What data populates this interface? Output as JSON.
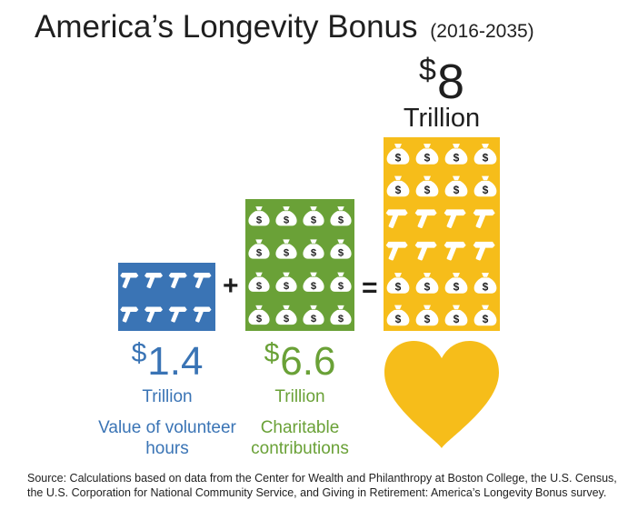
{
  "title": "America’s Longevity Bonus",
  "subtitle": "(2016-2035)",
  "colors": {
    "volunteer": "#3a74b5",
    "charitable": "#6aa137",
    "total": "#f6bd1a",
    "icon": "#ffffff",
    "text": "#1f1f1f"
  },
  "icons": {
    "hammer": "hammer-icon",
    "money_bag": "money-bag-icon",
    "heart": "heart-icon"
  },
  "operators": {
    "plus": "+",
    "equals": "="
  },
  "chart_data": {
    "type": "bar",
    "title": "America’s Longevity Bonus",
    "subtitle": "(2016-2035)",
    "unit": "Trillion",
    "series": [
      {
        "name": "Value of volunteer hours",
        "currency": "$",
        "amount": "1.4",
        "value": 1.4,
        "unit": "Trillion",
        "label": "Value of volunteer hours",
        "icon_grid": [
          "hammer",
          "hammer",
          "hammer",
          "hammer",
          "hammer",
          "hammer",
          "hammer",
          "hammer"
        ],
        "rows": 2,
        "cols": 4
      },
      {
        "name": "Charitable contributions",
        "currency": "$",
        "amount": "6.6",
        "value": 6.6,
        "unit": "Trillion",
        "label": "Charitable contributions",
        "icon_grid": [
          "money_bag",
          "money_bag",
          "money_bag",
          "money_bag",
          "money_bag",
          "money_bag",
          "money_bag",
          "money_bag",
          "money_bag",
          "money_bag",
          "money_bag",
          "money_bag",
          "money_bag",
          "money_bag",
          "money_bag",
          "money_bag"
        ],
        "rows": 4,
        "cols": 4
      },
      {
        "name": "Total",
        "currency": "$",
        "amount": "8",
        "value": 8,
        "unit": "Trillion",
        "label": "",
        "icon_grid": [
          "money_bag",
          "money_bag",
          "money_bag",
          "money_bag",
          "money_bag",
          "money_bag",
          "money_bag",
          "money_bag",
          "hammer",
          "hammer",
          "hammer",
          "hammer",
          "hammer",
          "hammer",
          "hammer",
          "hammer",
          "money_bag",
          "money_bag",
          "money_bag",
          "money_bag",
          "money_bag",
          "money_bag",
          "money_bag",
          "money_bag"
        ],
        "rows": 6,
        "cols": 4
      }
    ]
  },
  "source": "Source: Calculations based on data from the Center for Wealth and Philanthropy at Boston College, the U.S. Census, the U.S. Corporation for National Community Service, and Giving in Retirement: America’s Longevity Bonus survey."
}
